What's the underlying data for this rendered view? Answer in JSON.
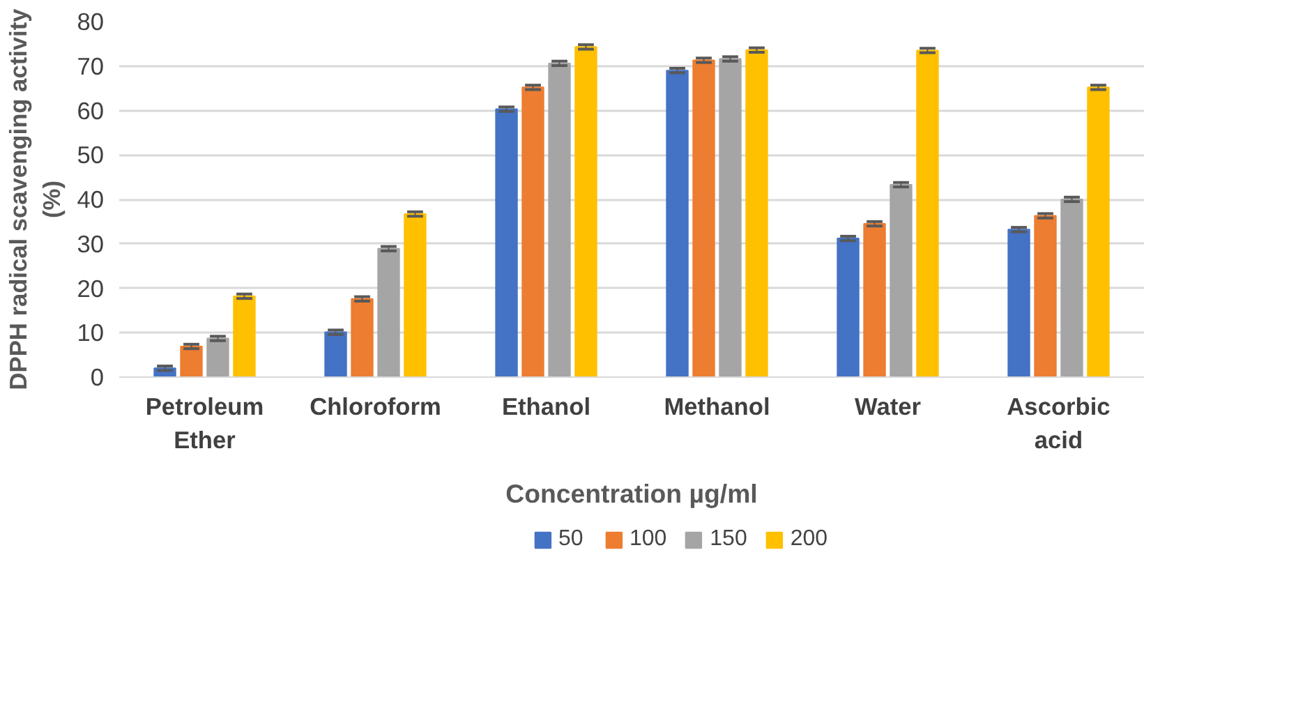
{
  "chart_data": {
    "type": "bar",
    "xlabel": "Concentration µg/ml",
    "ylabel": "DPPH radical scavenging activity\n(%)",
    "categories": [
      "Petroleum\nEther",
      "Chloroform",
      "Ethanol",
      "Methanol",
      "Water",
      "Ascorbic\nacid"
    ],
    "series": [
      {
        "name": "50",
        "color": "#4472c4",
        "values": [
          2.0,
          10.1,
          60.3,
          69.0,
          31.2,
          33.2
        ],
        "errors": [
          0.5,
          0.5,
          0.5,
          0.5,
          0.5,
          0.5
        ]
      },
      {
        "name": "100",
        "color": "#ed7d31",
        "values": [
          6.9,
          17.6,
          65.2,
          71.3,
          34.5,
          36.3
        ],
        "errors": [
          0.5,
          0.5,
          0.5,
          0.5,
          0.5,
          0.5
        ]
      },
      {
        "name": "150",
        "color": "#a5a5a5",
        "values": [
          8.7,
          28.9,
          70.6,
          71.6,
          43.3,
          40.0
        ],
        "errors": [
          0.5,
          0.5,
          0.5,
          0.5,
          0.5,
          0.5
        ]
      },
      {
        "name": "200",
        "color": "#ffc000",
        "values": [
          18.2,
          36.7,
          74.3,
          73.6,
          73.5,
          65.2
        ],
        "errors": [
          0.5,
          0.5,
          0.5,
          0.5,
          0.5,
          0.5
        ]
      }
    ],
    "ylim": [
      0,
      80
    ],
    "yticks": [
      0,
      10,
      20,
      30,
      40,
      50,
      60,
      70,
      80
    ],
    "grid": "y",
    "legend": "bottom"
  }
}
